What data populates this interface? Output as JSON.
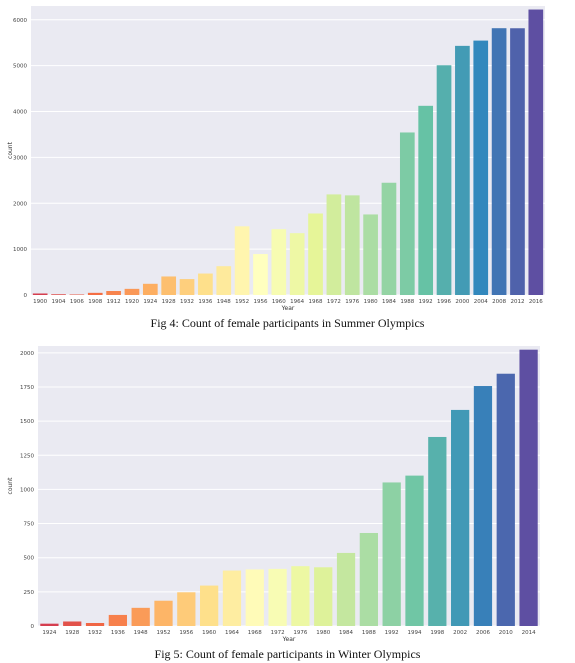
{
  "chart_data": [
    {
      "type": "bar",
      "xlabel": "Year",
      "ylabel": "count",
      "ylim": [
        0,
        6300
      ],
      "yticks": [
        0,
        1000,
        2000,
        3000,
        4000,
        5000,
        6000
      ],
      "grid": true,
      "categories": [
        "1900",
        "1904",
        "1906",
        "1908",
        "1912",
        "1920",
        "1924",
        "1928",
        "1932",
        "1936",
        "1948",
        "1952",
        "1956",
        "1960",
        "1964",
        "1968",
        "1972",
        "1976",
        "1980",
        "1984",
        "1988",
        "1992",
        "1996",
        "2000",
        "2004",
        "2008",
        "2012",
        "2016"
      ],
      "values": [
        33,
        16,
        11,
        47,
        87,
        134,
        244,
        404,
        347,
        468,
        628,
        1497,
        893,
        1435,
        1348,
        1777,
        2193,
        2172,
        1756,
        2447,
        3543,
        4124,
        5008,
        5431,
        5546,
        5816,
        5815,
        6223
      ],
      "caption": "Fig 4: Count of female participants in Summer Olympics"
    },
    {
      "type": "bar",
      "xlabel": "Year",
      "ylabel": "count",
      "ylim": [
        0,
        2050
      ],
      "yticks": [
        0,
        250,
        500,
        750,
        1000,
        1250,
        1500,
        1750,
        2000
      ],
      "grid": true,
      "categories": [
        "1924",
        "1928",
        "1932",
        "1936",
        "1948",
        "1952",
        "1956",
        "1960",
        "1964",
        "1968",
        "1972",
        "1976",
        "1980",
        "1984",
        "1988",
        "1992",
        "1994",
        "1998",
        "2002",
        "2006",
        "2010",
        "2014"
      ],
      "values": [
        17,
        33,
        22,
        81,
        133,
        185,
        247,
        296,
        406,
        414,
        418,
        438,
        430,
        535,
        681,
        1051,
        1101,
        1384,
        1582,
        1757,
        1847,
        2023
      ],
      "caption": "Fig 5: Count of female participants in Winter Olympics"
    }
  ]
}
